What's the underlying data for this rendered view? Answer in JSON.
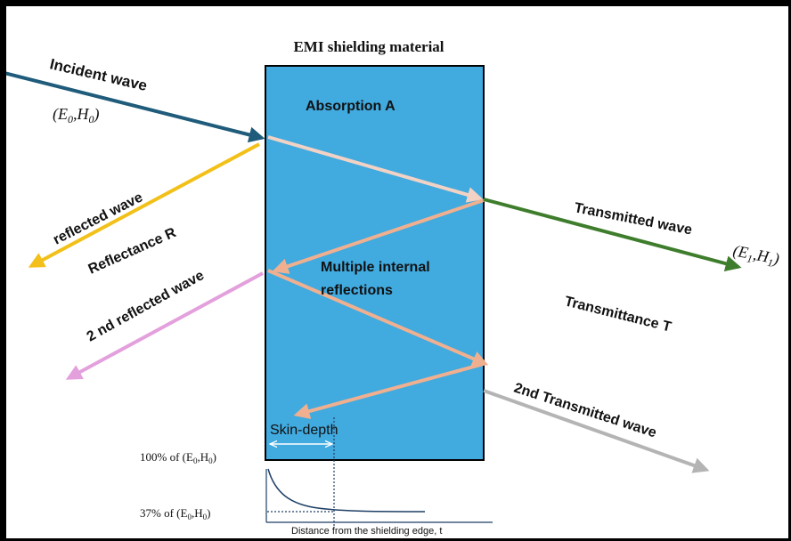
{
  "title": "EMI shielding material",
  "labels": {
    "incident": "Incident wave",
    "incident_eh": "(E",
    "incident_eh_sub0": "0",
    "incident_eh_mid": ",H",
    "incident_eh_sub1": "0",
    "incident_eh_end": ")",
    "absorption": "Absorption A",
    "reflected": "reflected wave",
    "reflectance": "Reflectance R",
    "second_reflected": "2 nd reflected wave",
    "multiple_line1": "Multiple internal",
    "multiple_line2": "reflections",
    "transmitted": "Transmitted wave",
    "transmitted_eh": "(E",
    "transmitted_eh_sub0": "1",
    "transmitted_eh_mid": ",H",
    "transmitted_eh_sub1": "1",
    "transmitted_eh_end": ")",
    "transmittance": "Transmittance T",
    "second_transmitted": "2nd Transmitted wave",
    "skin_depth": "Skin-depth",
    "pct100": "100% of (E",
    "pct100_sub0": "0",
    "pct100_mid": ",H",
    "pct100_sub1": "0",
    "pct100_end": ")",
    "pct37": "37% of (E",
    "pct37_sub0": "0",
    "pct37_mid": ",H",
    "pct37_sub1": "0",
    "pct37_end": ")",
    "distance_axis": "Distance from the shielding edge, t"
  },
  "colors": {
    "material": "#41aadf",
    "incident": "#1f5b7a",
    "reflected": "#f2c018",
    "second_reflected": "#e3a0dc",
    "internal": "#f0b090",
    "transmitted": "#3e7d2c",
    "second_transmitted": "#b4b4b4",
    "skin_arrow": "#ffffff",
    "decay_axis": "#1e3f66"
  }
}
